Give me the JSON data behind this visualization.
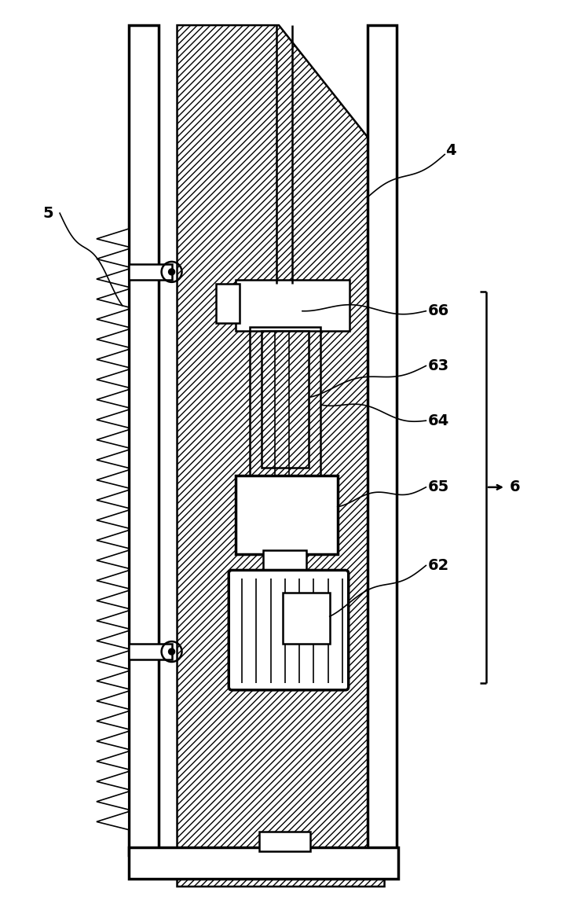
{
  "bg_color": "#ffffff",
  "lc": "#000000",
  "figsize": [
    7.27,
    11.59
  ],
  "dpi": 100,
  "label_fs": 14,
  "label_fw": "bold"
}
